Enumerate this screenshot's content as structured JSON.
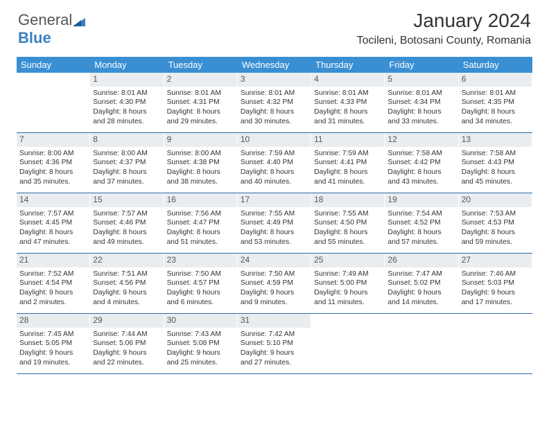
{
  "brand": {
    "name1": "General",
    "name2": "Blue"
  },
  "title": "January 2024",
  "location": "Tocileni, Botosani County, Romania",
  "colors": {
    "header_bg": "#3a8fd3",
    "header_text": "#ffffff",
    "daynum_bg": "#e9edf0",
    "week_border": "#2a6aa5",
    "brand_blue": "#3a7fbf",
    "text": "#333333"
  },
  "dayHeaders": [
    "Sunday",
    "Monday",
    "Tuesday",
    "Wednesday",
    "Thursday",
    "Friday",
    "Saturday"
  ],
  "weeks": [
    [
      {
        "n": "",
        "sr": "",
        "ss": "",
        "d1": "",
        "d2": ""
      },
      {
        "n": "1",
        "sr": "Sunrise: 8:01 AM",
        "ss": "Sunset: 4:30 PM",
        "d1": "Daylight: 8 hours",
        "d2": "and 28 minutes."
      },
      {
        "n": "2",
        "sr": "Sunrise: 8:01 AM",
        "ss": "Sunset: 4:31 PM",
        "d1": "Daylight: 8 hours",
        "d2": "and 29 minutes."
      },
      {
        "n": "3",
        "sr": "Sunrise: 8:01 AM",
        "ss": "Sunset: 4:32 PM",
        "d1": "Daylight: 8 hours",
        "d2": "and 30 minutes."
      },
      {
        "n": "4",
        "sr": "Sunrise: 8:01 AM",
        "ss": "Sunset: 4:33 PM",
        "d1": "Daylight: 8 hours",
        "d2": "and 31 minutes."
      },
      {
        "n": "5",
        "sr": "Sunrise: 8:01 AM",
        "ss": "Sunset: 4:34 PM",
        "d1": "Daylight: 8 hours",
        "d2": "and 33 minutes."
      },
      {
        "n": "6",
        "sr": "Sunrise: 8:01 AM",
        "ss": "Sunset: 4:35 PM",
        "d1": "Daylight: 8 hours",
        "d2": "and 34 minutes."
      }
    ],
    [
      {
        "n": "7",
        "sr": "Sunrise: 8:00 AM",
        "ss": "Sunset: 4:36 PM",
        "d1": "Daylight: 8 hours",
        "d2": "and 35 minutes."
      },
      {
        "n": "8",
        "sr": "Sunrise: 8:00 AM",
        "ss": "Sunset: 4:37 PM",
        "d1": "Daylight: 8 hours",
        "d2": "and 37 minutes."
      },
      {
        "n": "9",
        "sr": "Sunrise: 8:00 AM",
        "ss": "Sunset: 4:38 PM",
        "d1": "Daylight: 8 hours",
        "d2": "and 38 minutes."
      },
      {
        "n": "10",
        "sr": "Sunrise: 7:59 AM",
        "ss": "Sunset: 4:40 PM",
        "d1": "Daylight: 8 hours",
        "d2": "and 40 minutes."
      },
      {
        "n": "11",
        "sr": "Sunrise: 7:59 AM",
        "ss": "Sunset: 4:41 PM",
        "d1": "Daylight: 8 hours",
        "d2": "and 41 minutes."
      },
      {
        "n": "12",
        "sr": "Sunrise: 7:58 AM",
        "ss": "Sunset: 4:42 PM",
        "d1": "Daylight: 8 hours",
        "d2": "and 43 minutes."
      },
      {
        "n": "13",
        "sr": "Sunrise: 7:58 AM",
        "ss": "Sunset: 4:43 PM",
        "d1": "Daylight: 8 hours",
        "d2": "and 45 minutes."
      }
    ],
    [
      {
        "n": "14",
        "sr": "Sunrise: 7:57 AM",
        "ss": "Sunset: 4:45 PM",
        "d1": "Daylight: 8 hours",
        "d2": "and 47 minutes."
      },
      {
        "n": "15",
        "sr": "Sunrise: 7:57 AM",
        "ss": "Sunset: 4:46 PM",
        "d1": "Daylight: 8 hours",
        "d2": "and 49 minutes."
      },
      {
        "n": "16",
        "sr": "Sunrise: 7:56 AM",
        "ss": "Sunset: 4:47 PM",
        "d1": "Daylight: 8 hours",
        "d2": "and 51 minutes."
      },
      {
        "n": "17",
        "sr": "Sunrise: 7:55 AM",
        "ss": "Sunset: 4:49 PM",
        "d1": "Daylight: 8 hours",
        "d2": "and 53 minutes."
      },
      {
        "n": "18",
        "sr": "Sunrise: 7:55 AM",
        "ss": "Sunset: 4:50 PM",
        "d1": "Daylight: 8 hours",
        "d2": "and 55 minutes."
      },
      {
        "n": "19",
        "sr": "Sunrise: 7:54 AM",
        "ss": "Sunset: 4:52 PM",
        "d1": "Daylight: 8 hours",
        "d2": "and 57 minutes."
      },
      {
        "n": "20",
        "sr": "Sunrise: 7:53 AM",
        "ss": "Sunset: 4:53 PM",
        "d1": "Daylight: 8 hours",
        "d2": "and 59 minutes."
      }
    ],
    [
      {
        "n": "21",
        "sr": "Sunrise: 7:52 AM",
        "ss": "Sunset: 4:54 PM",
        "d1": "Daylight: 9 hours",
        "d2": "and 2 minutes."
      },
      {
        "n": "22",
        "sr": "Sunrise: 7:51 AM",
        "ss": "Sunset: 4:56 PM",
        "d1": "Daylight: 9 hours",
        "d2": "and 4 minutes."
      },
      {
        "n": "23",
        "sr": "Sunrise: 7:50 AM",
        "ss": "Sunset: 4:57 PM",
        "d1": "Daylight: 9 hours",
        "d2": "and 6 minutes."
      },
      {
        "n": "24",
        "sr": "Sunrise: 7:50 AM",
        "ss": "Sunset: 4:59 PM",
        "d1": "Daylight: 9 hours",
        "d2": "and 9 minutes."
      },
      {
        "n": "25",
        "sr": "Sunrise: 7:49 AM",
        "ss": "Sunset: 5:00 PM",
        "d1": "Daylight: 9 hours",
        "d2": "and 11 minutes."
      },
      {
        "n": "26",
        "sr": "Sunrise: 7:47 AM",
        "ss": "Sunset: 5:02 PM",
        "d1": "Daylight: 9 hours",
        "d2": "and 14 minutes."
      },
      {
        "n": "27",
        "sr": "Sunrise: 7:46 AM",
        "ss": "Sunset: 5:03 PM",
        "d1": "Daylight: 9 hours",
        "d2": "and 17 minutes."
      }
    ],
    [
      {
        "n": "28",
        "sr": "Sunrise: 7:45 AM",
        "ss": "Sunset: 5:05 PM",
        "d1": "Daylight: 9 hours",
        "d2": "and 19 minutes."
      },
      {
        "n": "29",
        "sr": "Sunrise: 7:44 AM",
        "ss": "Sunset: 5:06 PM",
        "d1": "Daylight: 9 hours",
        "d2": "and 22 minutes."
      },
      {
        "n": "30",
        "sr": "Sunrise: 7:43 AM",
        "ss": "Sunset: 5:08 PM",
        "d1": "Daylight: 9 hours",
        "d2": "and 25 minutes."
      },
      {
        "n": "31",
        "sr": "Sunrise: 7:42 AM",
        "ss": "Sunset: 5:10 PM",
        "d1": "Daylight: 9 hours",
        "d2": "and 27 minutes."
      },
      {
        "n": "",
        "sr": "",
        "ss": "",
        "d1": "",
        "d2": ""
      },
      {
        "n": "",
        "sr": "",
        "ss": "",
        "d1": "",
        "d2": ""
      },
      {
        "n": "",
        "sr": "",
        "ss": "",
        "d1": "",
        "d2": ""
      }
    ]
  ]
}
